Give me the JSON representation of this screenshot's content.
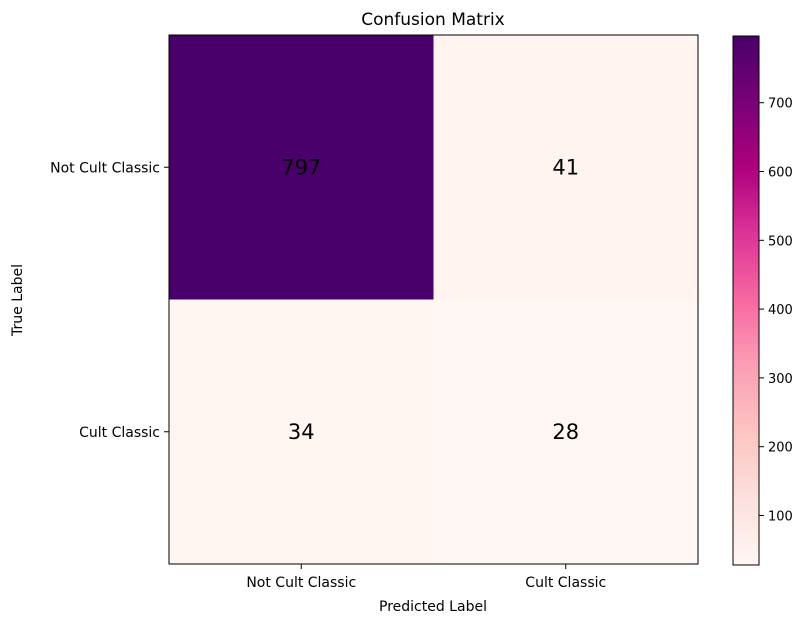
{
  "chart_data": {
    "type": "heatmap",
    "title": "Confusion Matrix",
    "xlabel": "Predicted Label",
    "ylabel": "True Label",
    "x_categories": [
      "Not Cult Classic",
      "Cult Classic"
    ],
    "y_categories": [
      "Not Cult Classic",
      "Cult Classic"
    ],
    "values": [
      [
        797,
        41
      ],
      [
        34,
        28
      ]
    ],
    "colormap": "RdPu",
    "color_range": [
      28,
      797
    ],
    "colorbar_ticks": [
      100,
      200,
      300,
      400,
      500,
      600,
      700
    ],
    "grid": false,
    "colorbar_placement": "right"
  }
}
